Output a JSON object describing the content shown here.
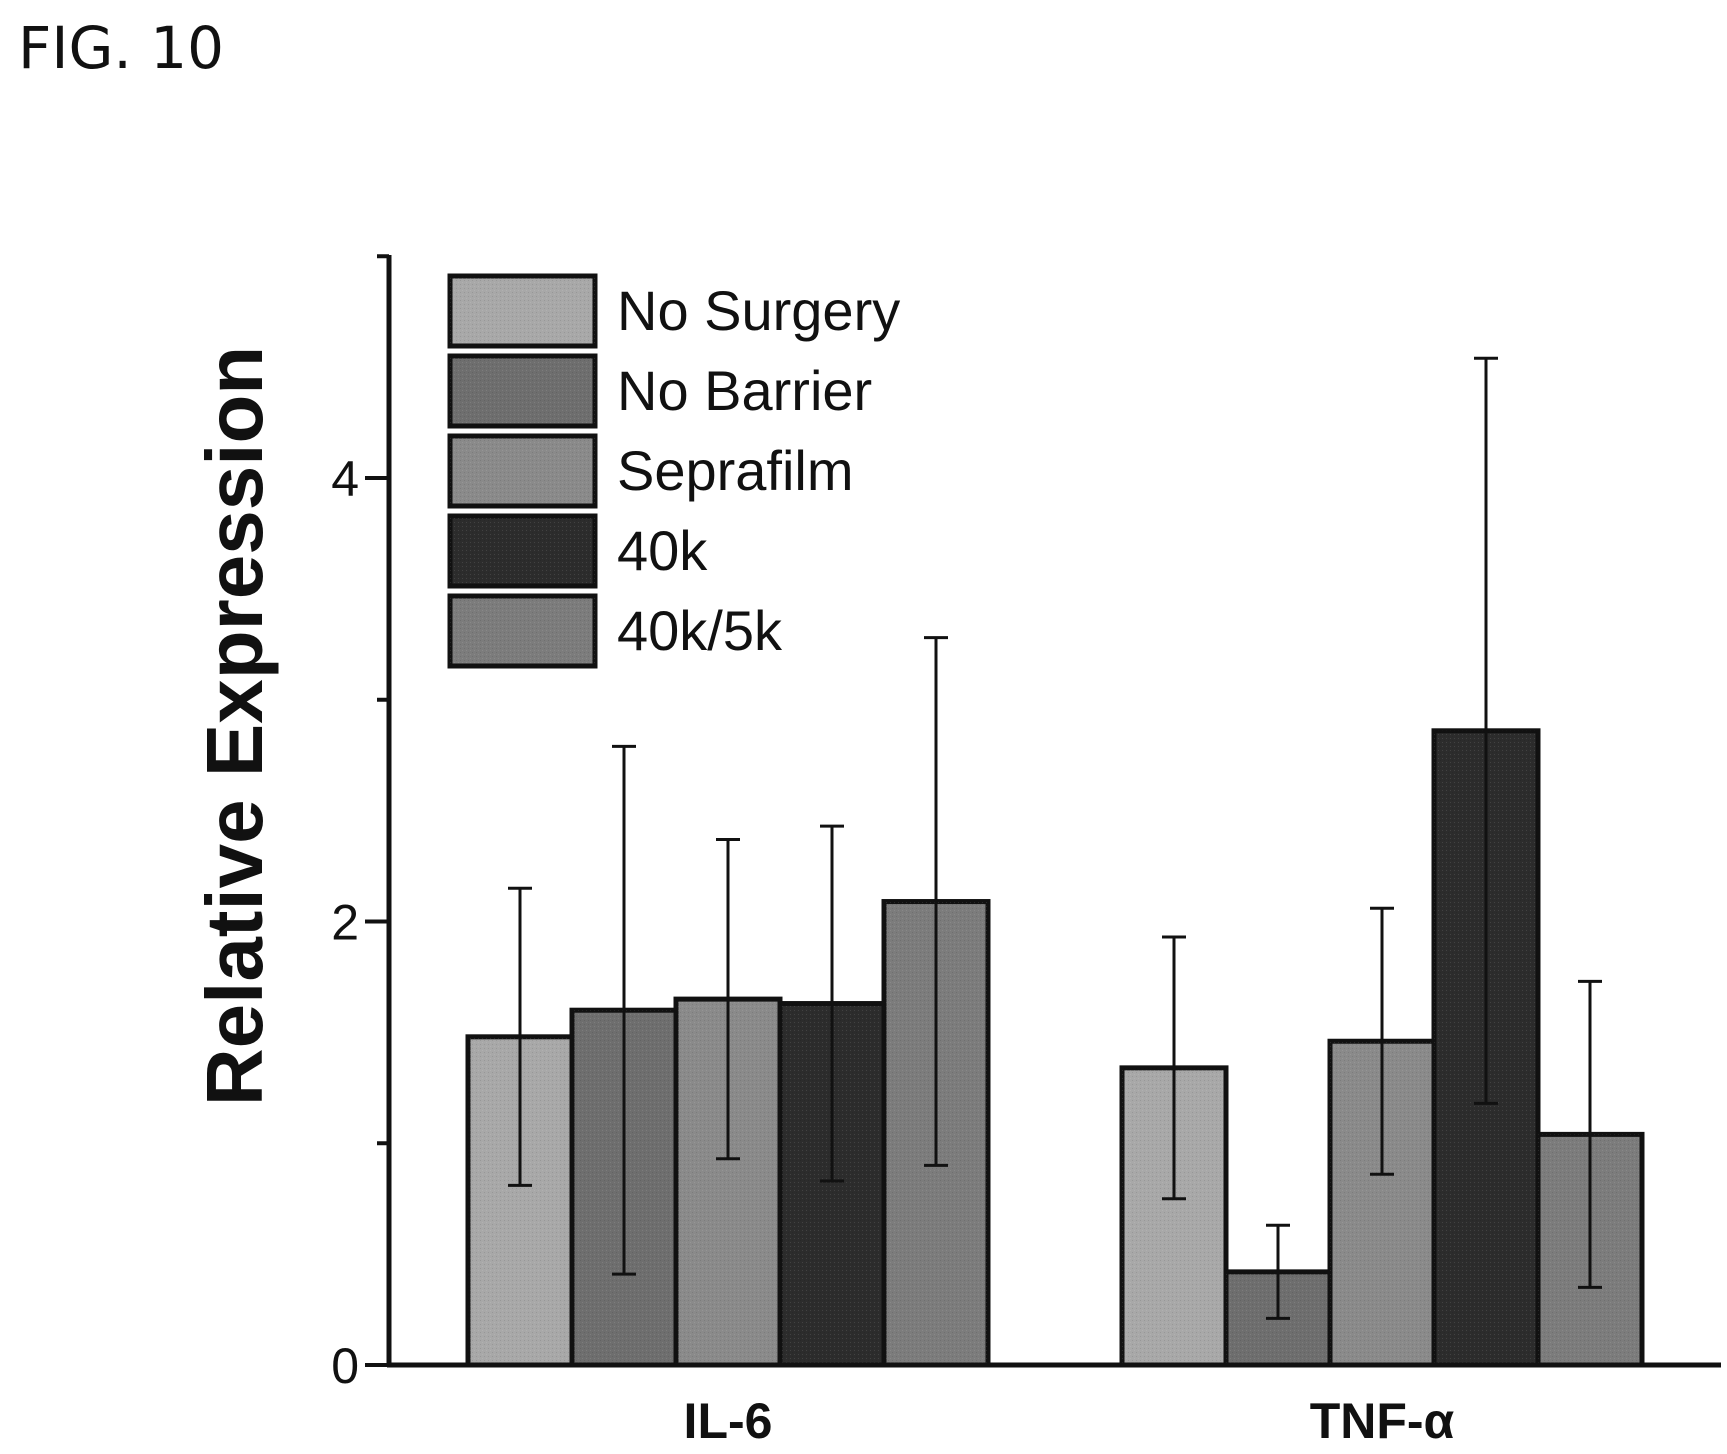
{
  "figure_label": "FIG. 10",
  "chart_data": {
    "type": "bar",
    "title": "",
    "xlabel": "",
    "ylabel": "Relative Expression",
    "ylim": [
      0,
      5
    ],
    "yticks": [
      0,
      2,
      4
    ],
    "categories": [
      "IL-6",
      "TNF-α"
    ],
    "legend_position": "top-left",
    "grid": false,
    "series": [
      {
        "name": "No Surgery",
        "color": "#a8a8a8",
        "values": [
          1.48,
          1.34
        ],
        "errors": [
          0.67,
          0.59
        ]
      },
      {
        "name": "No Barrier",
        "color": "#6e6e6e",
        "values": [
          1.6,
          0.42
        ],
        "errors": [
          1.19,
          0.21
        ]
      },
      {
        "name": "Seprafilm",
        "color": "#8a8a8a",
        "values": [
          1.65,
          1.46
        ],
        "errors": [
          0.72,
          0.6
        ]
      },
      {
        "name": "40k",
        "color": "#2c2c2c",
        "values": [
          1.63,
          2.86
        ],
        "errors": [
          0.8,
          1.68
        ]
      },
      {
        "name": "40k/5k",
        "color": "#7c7c7c",
        "values": [
          2.09,
          1.04
        ],
        "errors": [
          1.19,
          0.69
        ]
      }
    ]
  }
}
